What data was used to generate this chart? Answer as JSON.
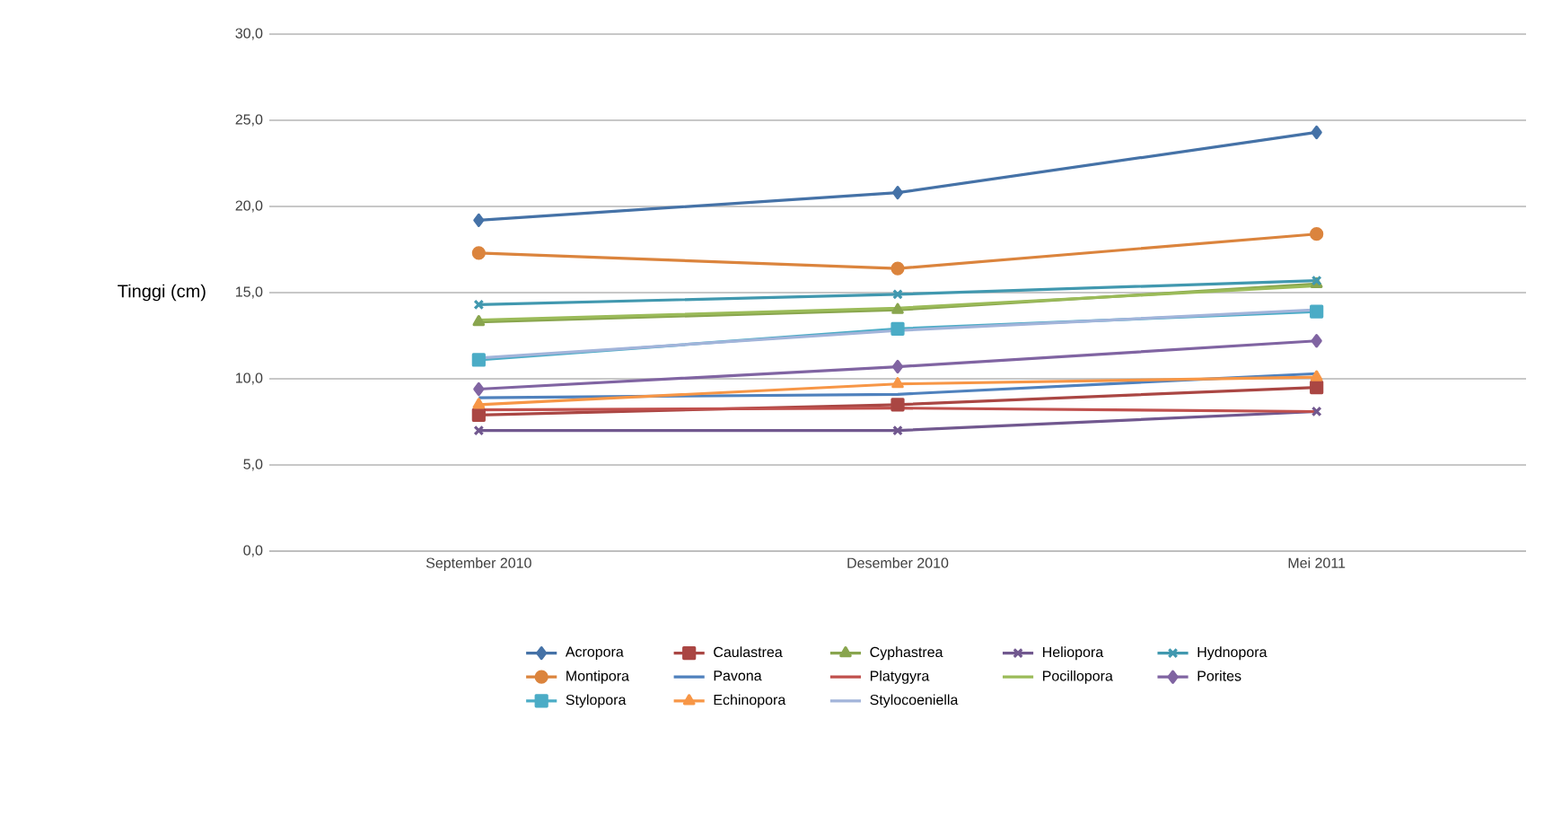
{
  "chart_data": {
    "type": "line",
    "ylabel": "Tinggi (cm)",
    "categories": [
      "September 2010",
      "Desember 2010",
      "Mei 2011"
    ],
    "ylim": [
      0,
      30
    ],
    "yticks": [
      {
        "value": 0,
        "label": "0,0"
      },
      {
        "value": 5,
        "label": "5,0"
      },
      {
        "value": 10,
        "label": "10,0"
      },
      {
        "value": 15,
        "label": "15,0"
      },
      {
        "value": 20,
        "label": "20,0"
      },
      {
        "value": 25,
        "label": "25,0"
      },
      {
        "value": 30,
        "label": "30,0"
      }
    ],
    "grid": "y",
    "legend": "bottom",
    "line_style": "solid",
    "series": [
      {
        "name": "Acropora",
        "color": "#4572a7",
        "marker": "diamond",
        "values": [
          19.2,
          20.8,
          24.3
        ]
      },
      {
        "name": "Caulastrea",
        "color": "#aa4643",
        "marker": "square",
        "values": [
          7.9,
          8.5,
          9.5
        ]
      },
      {
        "name": "Cyphastrea",
        "color": "#89a54e",
        "marker": "triangle",
        "values": [
          13.3,
          14.0,
          15.5
        ]
      },
      {
        "name": "Heliopora",
        "color": "#71588f",
        "marker": "cross",
        "values": [
          7.0,
          7.0,
          8.1
        ]
      },
      {
        "name": "Hydnopora",
        "color": "#4198af",
        "marker": "cross",
        "values": [
          14.3,
          14.9,
          15.7
        ]
      },
      {
        "name": "Montipora",
        "color": "#db843d",
        "marker": "circle",
        "values": [
          17.3,
          16.4,
          18.4
        ]
      },
      {
        "name": "Pavona",
        "color": "#4f81bd",
        "marker": "none",
        "values": [
          8.9,
          9.1,
          10.3
        ]
      },
      {
        "name": "Platygyra",
        "color": "#c0504d",
        "marker": "none",
        "values": [
          8.2,
          8.3,
          8.1
        ]
      },
      {
        "name": "Pocillopora",
        "color": "#9bbb59",
        "marker": "none",
        "values": [
          13.4,
          14.1,
          15.4
        ]
      },
      {
        "name": "Porites",
        "color": "#8064a2",
        "marker": "diamond",
        "values": [
          9.4,
          10.7,
          12.2
        ]
      },
      {
        "name": "Stylopora",
        "color": "#4bacc6",
        "marker": "square",
        "values": [
          11.1,
          12.9,
          13.9
        ]
      },
      {
        "name": "Echinopora",
        "color": "#f79646",
        "marker": "triangle",
        "values": [
          8.5,
          9.7,
          10.1
        ]
      },
      {
        "name": "Stylocoeniella",
        "color": "#a2b4da",
        "marker": "none",
        "values": [
          11.2,
          12.8,
          14.0
        ]
      }
    ]
  }
}
